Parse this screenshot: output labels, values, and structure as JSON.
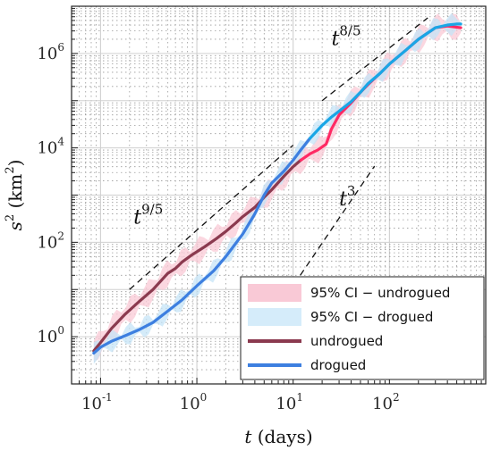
{
  "chart_data": {
    "type": "line",
    "xscale": "log",
    "yscale": "log",
    "xlim": [
      0.05,
      1000
    ],
    "ylim": [
      0.1,
      10000000
    ],
    "grid": true,
    "xlabel": {
      "base": "t",
      "rest": " (days)"
    },
    "ylabel": {
      "base": "s",
      "sup": "2",
      "rest": " (km",
      "rest_sup": "2",
      "close": ")"
    },
    "x_ticks": [
      {
        "base": "10",
        "exp": "-1",
        "value": 0.1
      },
      {
        "base": "10",
        "exp": "0",
        "value": 1
      },
      {
        "base": "10",
        "exp": "1",
        "value": 10
      },
      {
        "base": "10",
        "exp": "2",
        "value": 100
      }
    ],
    "y_ticks": [
      {
        "base": "10",
        "exp": "0",
        "value": 1
      },
      {
        "base": "10",
        "exp": "2",
        "value": 100
      },
      {
        "base": "10",
        "exp": "4",
        "value": 10000
      },
      {
        "base": "10",
        "exp": "6",
        "value": 1000000
      }
    ],
    "series": [
      {
        "name": "undrogued",
        "color": "#8b3a4f",
        "color_late": "#ff2a64",
        "x": [
          0.085,
          0.1,
          0.13,
          0.18,
          0.25,
          0.35,
          0.5,
          0.6,
          0.7,
          0.9,
          1.2,
          1.6,
          2,
          2.5,
          3,
          4,
          5,
          6,
          8,
          10,
          12,
          15,
          18,
          22,
          25,
          30,
          40,
          50,
          60,
          80,
          100,
          150,
          200,
          300,
          400,
          500,
          550
        ],
        "y": [
          0.5,
          0.75,
          1.5,
          3,
          5.5,
          10,
          22,
          28,
          38,
          55,
          80,
          120,
          170,
          250,
          350,
          550,
          900,
          1300,
          2500,
          4000,
          5500,
          7500,
          9000,
          12000,
          25000,
          50000,
          90000,
          150000,
          220000,
          380000,
          600000,
          1200000,
          2000000,
          3500000,
          3800000,
          3600000,
          3500000
        ]
      },
      {
        "name": "drogued",
        "color": "#3d7fe0",
        "color_late": "#19a6e6",
        "x": [
          0.085,
          0.1,
          0.13,
          0.18,
          0.25,
          0.35,
          0.5,
          0.7,
          1,
          1.5,
          2,
          3,
          4,
          5,
          6,
          8,
          10,
          12,
          15,
          20,
          25,
          30,
          40,
          50,
          60,
          80,
          100,
          150,
          200,
          300,
          400,
          500,
          550
        ],
        "y": [
          0.45,
          0.6,
          0.8,
          1.05,
          1.4,
          2,
          3.5,
          6,
          12,
          25,
          50,
          150,
          400,
          1000,
          1800,
          3200,
          5500,
          9000,
          16000,
          30000,
          45000,
          60000,
          95000,
          150000,
          230000,
          380000,
          600000,
          1200000,
          2000000,
          3500000,
          4000000,
          4200000,
          4200000
        ]
      }
    ],
    "confidence_bands": [
      {
        "name": "95% CI − undrogued",
        "series": "undrogued",
        "factor": 1.6,
        "color": "#f9c9d6"
      },
      {
        "name": "95% CI − drogued",
        "series": "drogued",
        "factor": 1.4,
        "color": "#c6e4f7"
      }
    ],
    "reference_lines": [
      {
        "label": {
          "base": "t",
          "exp": "9/5"
        },
        "exponent": 1.8,
        "x": [
          0.2,
          10
        ],
        "y_start": 10
      },
      {
        "label": {
          "base": "t",
          "exp": "3"
        },
        "exponent": 3,
        "x": [
          5,
          70
        ],
        "y_start": 1.5
      },
      {
        "label": {
          "base": "t",
          "exp": "8/5"
        },
        "exponent": 1.6,
        "x": [
          20,
          250
        ],
        "y_start": 100000
      }
    ],
    "legend": {
      "placement": "bottom-right",
      "items": [
        {
          "label": "95% CI − undrogued",
          "kind": "band",
          "color": "#f9c9d6"
        },
        {
          "label": "95% CI − drogued",
          "kind": "band",
          "color": "#d5ecfa"
        },
        {
          "label": "undrogued",
          "kind": "line",
          "color": "#8b3a4f"
        },
        {
          "label": "drogued",
          "kind": "line",
          "color": "#3d7fe0"
        }
      ]
    }
  }
}
